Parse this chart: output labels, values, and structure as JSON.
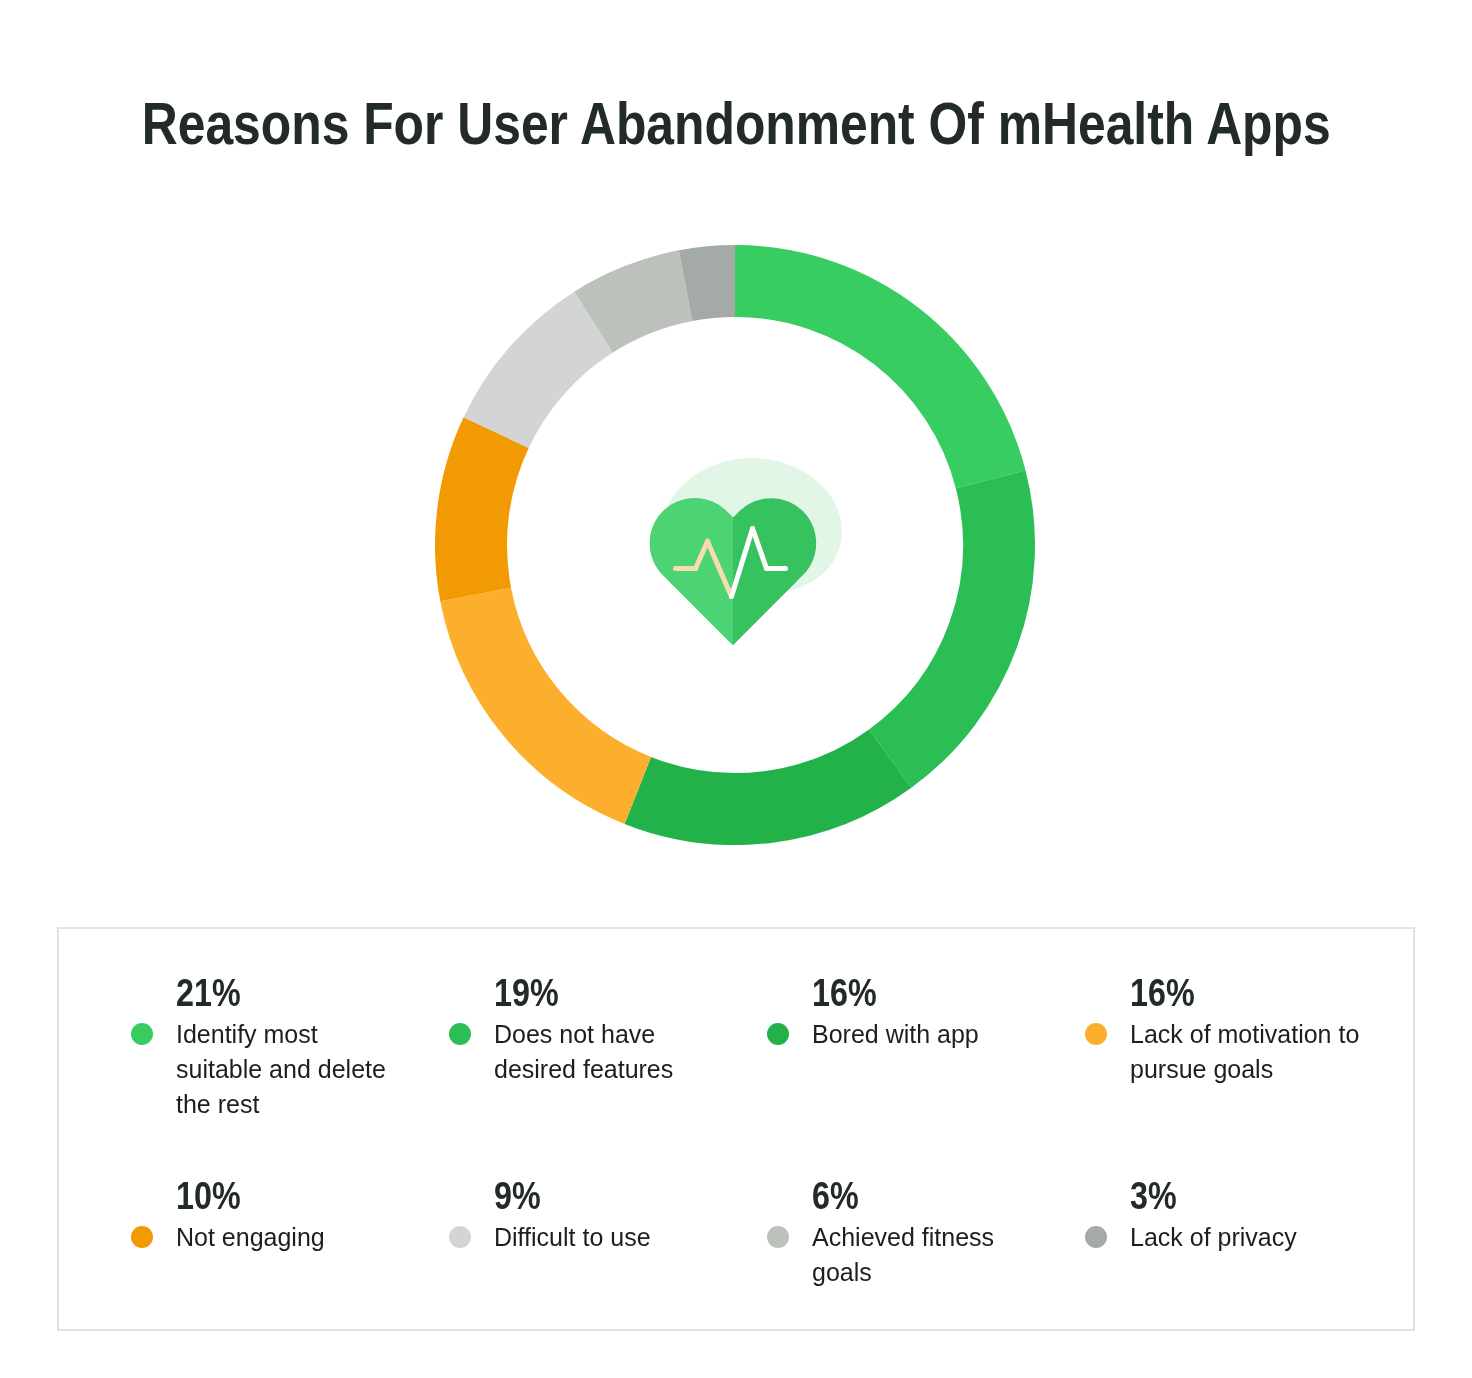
{
  "chart_data": {
    "type": "donut",
    "title": "Reasons For User Abandonment Of mHealth Apps",
    "categories": [
      "Identify most suitable and delete the rest",
      "Does not have desired features",
      "Bored with app",
      "Lack of motivation to pursue goals",
      "Not engaging",
      "Difficult to use",
      "Achieved fitness goals",
      "Lack of privacy"
    ],
    "values": [
      21,
      19,
      16,
      16,
      10,
      9,
      6,
      3
    ],
    "colors": [
      "#37cd61",
      "#2bbe54",
      "#23b14a",
      "#fcaf2c",
      "#f19a03",
      "#d3d5d4",
      "#bcc1bc",
      "#a4aaa5"
    ],
    "value_labels": [
      "21%",
      "19%",
      "16%",
      "16%",
      "10%",
      "9%",
      "6%",
      "3%"
    ],
    "legend": "bottom"
  }
}
